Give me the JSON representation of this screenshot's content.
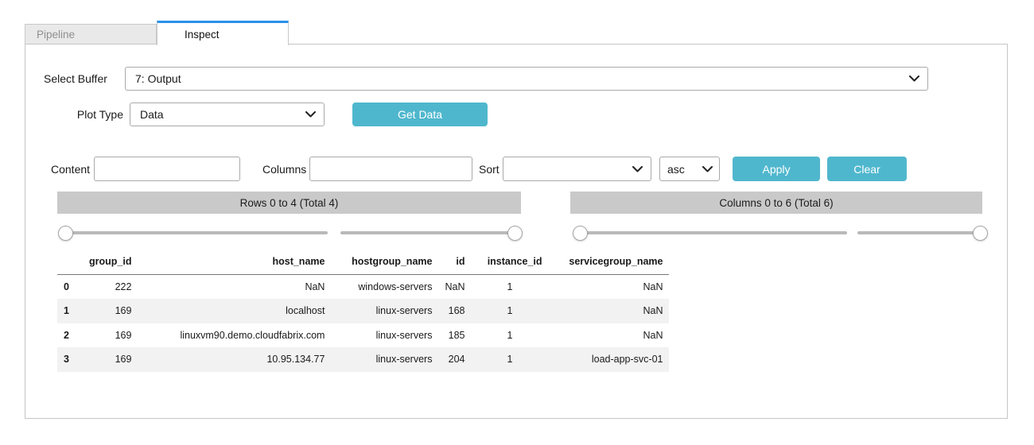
{
  "tabs": [
    {
      "label": "Pipeline",
      "active": false
    },
    {
      "label": "Inspect",
      "active": true
    }
  ],
  "controls": {
    "select_buffer_label": "Select Buffer",
    "select_buffer_value": "7: Output",
    "plot_type_label": "Plot Type",
    "plot_type_value": "Data",
    "get_data_label": "Get Data",
    "content_label": "Content",
    "content_value": "",
    "columns_label": "Columns",
    "columns_value": "",
    "sort_label": "Sort",
    "sort_value": "",
    "sort_order_value": "asc",
    "apply_label": "Apply",
    "clear_label": "Clear"
  },
  "pagers": {
    "rows_label": "Rows 0 to 4 (Total 4)",
    "columns_label": "Columns 0 to 6 (Total 6)"
  },
  "table": {
    "index_values": [
      "0",
      "1",
      "2",
      "3"
    ],
    "columns": [
      "group_id",
      "host_name",
      "hostgroup_name",
      "id",
      "instance_id",
      "servicegroup_name"
    ],
    "rows": [
      [
        "222",
        "NaN",
        "windows-servers",
        "NaN",
        "1",
        "NaN"
      ],
      [
        "169",
        "localhost",
        "linux-servers",
        "168",
        "1",
        "NaN"
      ],
      [
        "169",
        "linuxvm90.demo.cloudfabrix.com",
        "linux-servers",
        "185",
        "1",
        "NaN"
      ],
      [
        "169",
        "10.95.134.77",
        "linux-servers",
        "204",
        "1",
        "load-app-svc-01"
      ]
    ]
  },
  "colors": {
    "accent_teal": "#4fb7cd",
    "active_tab_border": "#2b90ea",
    "pager_gray": "#c9c9c9",
    "stripe_gray": "#f2f2f2"
  }
}
